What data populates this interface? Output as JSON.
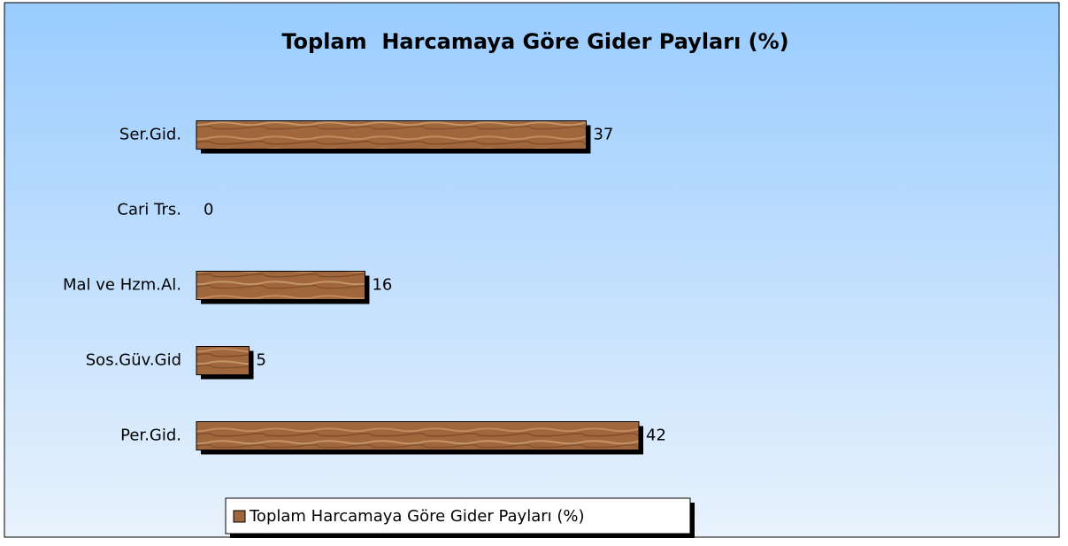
{
  "chart_data": {
    "type": "bar",
    "orientation": "horizontal",
    "title": "Toplam  Harcamaya Göre Gider Payları (%)",
    "categories": [
      "Ser.Gid.",
      "Cari Trs.",
      "Mal ve Hzm.Al.",
      "Sos.Güv.Gid",
      "Per.Gid."
    ],
    "series": [
      {
        "name": "Toplam Harcamaya Göre Gider Payları (%)",
        "color": "#a0673c",
        "values": [
          37,
          0,
          16,
          5,
          42
        ]
      }
    ],
    "legend": "bottom"
  }
}
